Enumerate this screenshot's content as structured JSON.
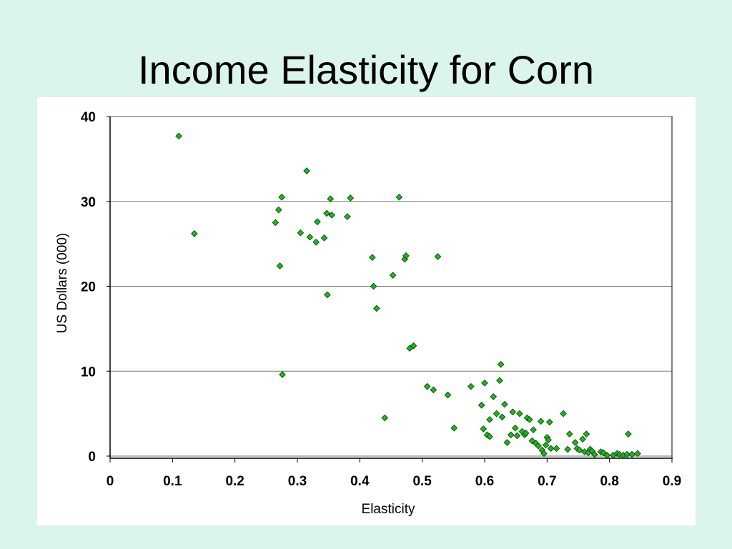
{
  "slide": {
    "title": "Income Elasticity for Corn"
  },
  "chart_data": {
    "type": "scatter",
    "title": "",
    "xlabel": "Elasticity",
    "ylabel": "US Dollars (000)",
    "xlim": [
      0,
      0.9
    ],
    "ylim": [
      0,
      40
    ],
    "xticks": [
      0,
      0.1,
      0.2,
      0.3,
      0.4,
      0.5,
      0.6,
      0.7,
      0.8,
      0.9
    ],
    "xtick_labels": [
      "0",
      "0.1",
      "0.2",
      "0.3",
      "0.4",
      "0.5",
      "0.6",
      "0.7",
      "0.8",
      "0.9"
    ],
    "yticks": [
      0,
      10,
      20,
      30,
      40
    ],
    "ytick_labels": [
      "0",
      "10",
      "20",
      "30",
      "40"
    ],
    "grid": "horizontal",
    "legend": "none",
    "marker": "diamond",
    "marker_color": "#22b422",
    "marker_edge_color": "#0a4a0a",
    "points": [
      [
        0.11,
        37.7
      ],
      [
        0.135,
        26.2
      ],
      [
        0.265,
        27.5
      ],
      [
        0.27,
        29.0
      ],
      [
        0.272,
        22.4
      ],
      [
        0.275,
        30.5
      ],
      [
        0.276,
        9.6
      ],
      [
        0.305,
        26.3
      ],
      [
        0.315,
        33.6
      ],
      [
        0.32,
        25.8
      ],
      [
        0.33,
        25.2
      ],
      [
        0.332,
        27.6
      ],
      [
        0.343,
        25.7
      ],
      [
        0.347,
        28.6
      ],
      [
        0.348,
        19.0
      ],
      [
        0.353,
        30.3
      ],
      [
        0.355,
        28.4
      ],
      [
        0.38,
        28.2
      ],
      [
        0.385,
        30.4
      ],
      [
        0.42,
        23.4
      ],
      [
        0.422,
        20.0
      ],
      [
        0.427,
        17.4
      ],
      [
        0.44,
        4.5
      ],
      [
        0.453,
        21.3
      ],
      [
        0.463,
        30.5
      ],
      [
        0.472,
        23.2
      ],
      [
        0.474,
        23.6
      ],
      [
        0.48,
        12.7
      ],
      [
        0.486,
        13.0
      ],
      [
        0.508,
        8.2
      ],
      [
        0.518,
        7.8
      ],
      [
        0.525,
        23.5
      ],
      [
        0.541,
        7.2
      ],
      [
        0.551,
        3.3
      ],
      [
        0.578,
        8.2
      ],
      [
        0.595,
        6.0
      ],
      [
        0.598,
        3.2
      ],
      [
        0.6,
        8.6
      ],
      [
        0.604,
        2.5
      ],
      [
        0.608,
        2.3
      ],
      [
        0.608,
        4.3
      ],
      [
        0.614,
        7.0
      ],
      [
        0.619,
        5.0
      ],
      [
        0.624,
        8.9
      ],
      [
        0.626,
        10.8
      ],
      [
        0.628,
        4.6
      ],
      [
        0.632,
        6.1
      ],
      [
        0.636,
        1.6
      ],
      [
        0.642,
        2.5
      ],
      [
        0.645,
        5.2
      ],
      [
        0.649,
        3.3
      ],
      [
        0.652,
        2.4
      ],
      [
        0.656,
        5.0
      ],
      [
        0.66,
        2.9
      ],
      [
        0.664,
        2.5
      ],
      [
        0.666,
        2.7
      ],
      [
        0.668,
        4.5
      ],
      [
        0.672,
        4.3
      ],
      [
        0.676,
        1.8
      ],
      [
        0.678,
        3.1
      ],
      [
        0.682,
        1.5
      ],
      [
        0.686,
        1.2
      ],
      [
        0.69,
        4.1
      ],
      [
        0.692,
        0.7
      ],
      [
        0.695,
        0.3
      ],
      [
        0.698,
        1.3
      ],
      [
        0.7,
        2.2
      ],
      [
        0.702,
        1.9
      ],
      [
        0.704,
        4.0
      ],
      [
        0.706,
        0.9
      ],
      [
        0.715,
        0.9
      ],
      [
        0.726,
        5.0
      ],
      [
        0.733,
        0.8
      ],
      [
        0.736,
        2.6
      ],
      [
        0.745,
        1.6
      ],
      [
        0.748,
        0.9
      ],
      [
        0.752,
        0.7
      ],
      [
        0.757,
        2.0
      ],
      [
        0.76,
        0.5
      ],
      [
        0.763,
        2.6
      ],
      [
        0.766,
        0.4
      ],
      [
        0.769,
        0.8
      ],
      [
        0.772,
        0.6
      ],
      [
        0.776,
        0.2
      ],
      [
        0.786,
        0.5
      ],
      [
        0.79,
        0.4
      ],
      [
        0.796,
        0.1
      ],
      [
        0.806,
        0.1
      ],
      [
        0.812,
        0.3
      ],
      [
        0.816,
        0.2
      ],
      [
        0.822,
        0.1
      ],
      [
        0.828,
        0.2
      ],
      [
        0.83,
        2.6
      ],
      [
        0.836,
        0.2
      ],
      [
        0.845,
        0.3
      ]
    ]
  }
}
